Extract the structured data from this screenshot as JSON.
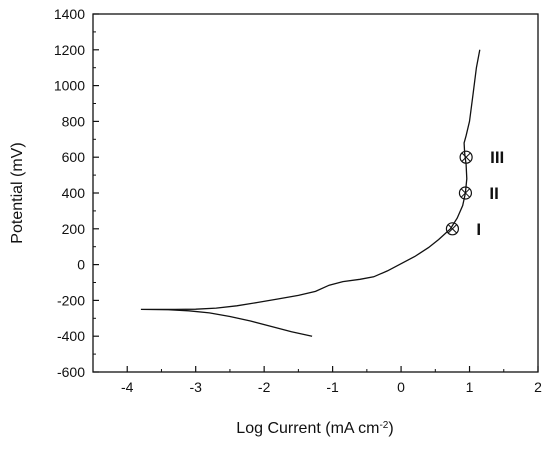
{
  "chart_data": {
    "type": "line",
    "title": "",
    "xlabel": "Log Current (mA cm",
    "xlabel_sup": "-2",
    "xlabel_close": ")",
    "ylabel": "Potential (mV)",
    "xlim": [
      -4.5,
      2
    ],
    "ylim": [
      -600,
      1400
    ],
    "xticks": [
      -4,
      -3,
      -2,
      -1,
      0,
      1,
      2
    ],
    "xtick_labels": [
      "-4",
      "-3",
      "-2",
      "-1",
      "0",
      "1",
      "2"
    ],
    "yticks": [
      -600,
      -400,
      -200,
      0,
      200,
      400,
      600,
      800,
      1000,
      1200,
      1400
    ],
    "ytick_labels": [
      "-600",
      "-400",
      "-200",
      "0",
      "200",
      "400",
      "600",
      "800",
      "1000",
      "1200",
      "1400"
    ],
    "grid": false,
    "legend": "none",
    "series": [
      {
        "points": [
          [
            -1.3,
            -400
          ],
          [
            -1.6,
            -375
          ],
          [
            -1.9,
            -345
          ],
          [
            -2.2,
            -315
          ],
          [
            -2.5,
            -290
          ],
          [
            -2.8,
            -270
          ],
          [
            -3.1,
            -258
          ],
          [
            -3.4,
            -252
          ],
          [
            -3.8,
            -250
          ],
          [
            -3.3,
            -250
          ],
          [
            -3.0,
            -249
          ],
          [
            -2.7,
            -243
          ],
          [
            -2.4,
            -230
          ],
          [
            -2.1,
            -212
          ],
          [
            -1.8,
            -192
          ],
          [
            -1.5,
            -172
          ],
          [
            -1.25,
            -150
          ],
          [
            -1.05,
            -115
          ],
          [
            -0.85,
            -95
          ],
          [
            -0.6,
            -82
          ],
          [
            -0.4,
            -68
          ],
          [
            -0.2,
            -35
          ],
          [
            0.0,
            5
          ],
          [
            0.2,
            45
          ],
          [
            0.4,
            95
          ],
          [
            0.55,
            140
          ],
          [
            0.72,
            200
          ],
          [
            0.82,
            260
          ],
          [
            0.9,
            330
          ],
          [
            0.94,
            400
          ],
          [
            0.96,
            480
          ],
          [
            0.95,
            560
          ],
          [
            0.93,
            620
          ],
          [
            0.92,
            680
          ],
          [
            0.95,
            720
          ],
          [
            1.0,
            800
          ],
          [
            1.05,
            950
          ],
          [
            1.1,
            1100
          ],
          [
            1.15,
            1200
          ]
        ]
      }
    ],
    "markers": [
      {
        "label": "I",
        "x": 0.75,
        "y": 200
      },
      {
        "label": "II",
        "x": 0.94,
        "y": 400
      },
      {
        "label": "III",
        "x": 0.95,
        "y": 600
      }
    ]
  }
}
